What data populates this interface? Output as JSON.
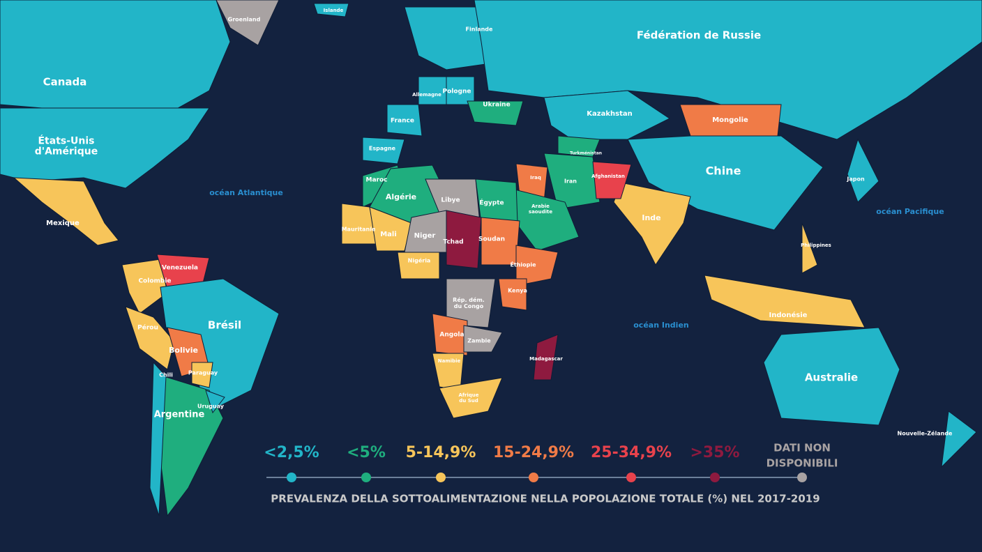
{
  "map": {
    "legend": {
      "title": "PREVALENZA DELLA SOTTOALIMENTAZIONE NELLA POPOLAZIONE TOTALE (%) NEL 2017-2019",
      "items": [
        {
          "label": [
            "<2,5%"
          ],
          "color": "#22b5c8"
        },
        {
          "label": [
            "<5%"
          ],
          "color": "#1fae7e"
        },
        {
          "label": [
            "5-14,9%"
          ],
          "color": "#f7c55a"
        },
        {
          "label": [
            "15-24,9%"
          ],
          "color": "#f07b47"
        },
        {
          "label": [
            "25-34,9%"
          ],
          "color": "#e8424c"
        },
        {
          "label": [
            ">35%"
          ],
          "color": "#8e1a3f"
        },
        {
          "label": [
            "DATI NON",
            "DISPONIBILI"
          ],
          "color": "#a8a2a2"
        }
      ]
    },
    "oceans": [
      "océan Atlantique",
      "océan Pacifique",
      "océan Indien"
    ],
    "countries": [
      {
        "label": [
          "Canada"
        ],
        "category": 0
      },
      {
        "label": [
          "États-Unis",
          "d'Amérique"
        ],
        "category": 0
      },
      {
        "label": [
          "Mexique"
        ],
        "category": 2
      },
      {
        "label": [
          "Groenland"
        ],
        "category": 6
      },
      {
        "label": [
          "Colombie"
        ],
        "category": 2
      },
      {
        "label": [
          "Venezuela"
        ],
        "category": 4
      },
      {
        "label": [
          "Pérou"
        ],
        "category": 2
      },
      {
        "label": [
          "Brésil"
        ],
        "category": 0
      },
      {
        "label": [
          "Bolivie"
        ],
        "category": 3
      },
      {
        "label": [
          "Paraguay"
        ],
        "category": 2
      },
      {
        "label": [
          "Argentine"
        ],
        "category": 1
      },
      {
        "label": [
          "Chili"
        ],
        "category": 0
      },
      {
        "label": [
          "Uruguay"
        ],
        "category": 0
      },
      {
        "label": [
          "Islande"
        ],
        "category": 0
      },
      {
        "label": [
          "Finlande"
        ],
        "category": 0
      },
      {
        "label": [
          "France"
        ],
        "category": 0
      },
      {
        "label": [
          "Espagne"
        ],
        "category": 0
      },
      {
        "label": [
          "Allemagne"
        ],
        "category": 0
      },
      {
        "label": [
          "Pologne"
        ],
        "category": 0
      },
      {
        "label": [
          "Ukraine"
        ],
        "category": 1
      },
      {
        "label": [
          "Fédération de Russie"
        ],
        "category": 0
      },
      {
        "label": [
          "Kazakhstan"
        ],
        "category": 0
      },
      {
        "label": [
          "Mongolie"
        ],
        "category": 3
      },
      {
        "label": [
          "Chine"
        ],
        "category": 0
      },
      {
        "label": [
          "Inde"
        ],
        "category": 2
      },
      {
        "label": [
          "Japon"
        ],
        "category": 0
      },
      {
        "label": [
          "Iran"
        ],
        "category": 1
      },
      {
        "label": [
          "Afghanistan"
        ],
        "category": 4
      },
      {
        "label": [
          "Turkménistan"
        ],
        "category": 1
      },
      {
        "label": [
          "Iraq"
        ],
        "category": 3
      },
      {
        "label": [
          "Arabie",
          "saoudite"
        ],
        "category": 1
      },
      {
        "label": [
          "Indonésie"
        ],
        "category": 2
      },
      {
        "label": [
          "Philippines"
        ],
        "category": 2
      },
      {
        "label": [
          "Australie"
        ],
        "category": 0
      },
      {
        "label": [
          "Nouvelle-Zélande"
        ],
        "category": 0
      },
      {
        "label": [
          "Maroc"
        ],
        "category": 1
      },
      {
        "label": [
          "Algérie"
        ],
        "category": 1
      },
      {
        "label": [
          "Libye"
        ],
        "category": 6
      },
      {
        "label": [
          "Égypte"
        ],
        "category": 1
      },
      {
        "label": [
          "Mauritanie"
        ],
        "category": 2
      },
      {
        "label": [
          "Mali"
        ],
        "category": 2
      },
      {
        "label": [
          "Niger"
        ],
        "category": 6
      },
      {
        "label": [
          "Tchad"
        ],
        "category": 5
      },
      {
        "label": [
          "Soudan"
        ],
        "category": 3
      },
      {
        "label": [
          "Nigéria"
        ],
        "category": 2
      },
      {
        "label": [
          "Éthiopie"
        ],
        "category": 3
      },
      {
        "label": [
          "Rép. dém.",
          "du Congo"
        ],
        "category": 6
      },
      {
        "label": [
          "Kenya"
        ],
        "category": 3
      },
      {
        "label": [
          "Angola"
        ],
        "category": 3
      },
      {
        "label": [
          "Zambie"
        ],
        "category": 6
      },
      {
        "label": [
          "Namibie"
        ],
        "category": 2
      },
      {
        "label": [
          "Afrique",
          "du Sud"
        ],
        "category": 2
      },
      {
        "label": [
          "Madagascar"
        ],
        "category": 5
      }
    ]
  }
}
